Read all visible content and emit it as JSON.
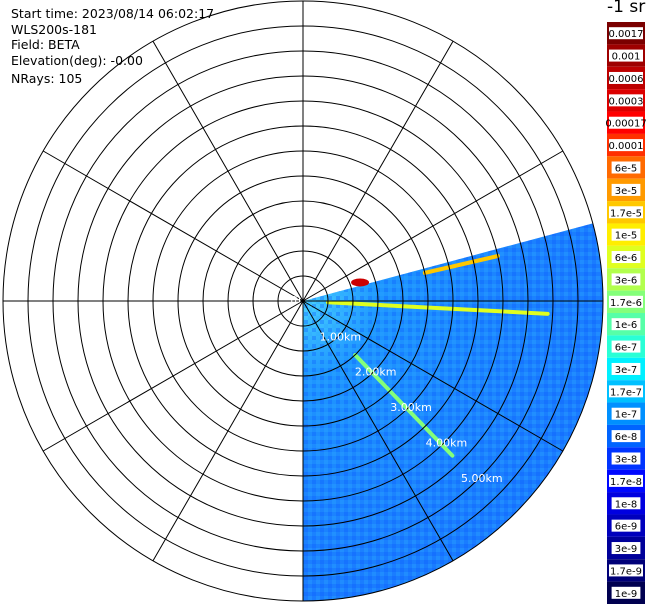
{
  "info": {
    "start_time": "Start time: 2023/08/14 06:02:17",
    "instrument": "WLS200s-181",
    "field": "Field: BETA",
    "elevation": "Elevation(deg): -0.00",
    "nrays": "NRays: 105"
  },
  "colorbar": {
    "title": "-1 sr",
    "labels": [
      "0.0017",
      "0.001",
      "0.0006",
      "0.0003",
      "0.00017",
      "0.0001",
      "6e-5",
      "3e-5",
      "1.7e-5",
      "1e-5",
      "6e-6",
      "3e-6",
      "1.7e-6",
      "1e-6",
      "6e-7",
      "3e-7",
      "1.7e-7",
      "1e-7",
      "6e-8",
      "3e-8",
      "1.7e-8",
      "1e-8",
      "6e-9",
      "3e-9",
      "1.7e-9",
      "1e-9"
    ],
    "colors": [
      "#7a0000",
      "#9e0000",
      "#bd0000",
      "#dc0000",
      "#ff0000",
      "#ff3000",
      "#ff6a00",
      "#ff9a00",
      "#ffc800",
      "#ffee00",
      "#dfff20",
      "#b2ff4d",
      "#84ff7a",
      "#56ffa8",
      "#29ffd6",
      "#00f0ff",
      "#00c0ff",
      "#0090ff",
      "#0064ff",
      "#0034ff",
      "#0008ff",
      "#0000e0",
      "#0000bd",
      "#00009a",
      "#000078",
      "#000050"
    ]
  },
  "chart_data": {
    "type": "ppi",
    "range_rings_km": [
      0.5,
      1.0,
      1.5,
      2.0,
      2.5,
      3.0,
      3.5,
      4.0,
      4.5,
      5.0,
      5.5,
      6.0
    ],
    "ring_labels": [
      "1.00km",
      "2.00km",
      "3.00km",
      "4.00km",
      "5.00km"
    ],
    "ring_label_partial": "m",
    "radial_spokes_deg": [
      0,
      30,
      60,
      90,
      120,
      150,
      180,
      210,
      240,
      270,
      300,
      330
    ],
    "scan_sector_deg": {
      "from": 75,
      "to": 180
    },
    "max_range_km": 6.0,
    "azimuth_convention": "clockwise from north",
    "features": [
      {
        "name": "near-field hotspot",
        "az_deg": 72,
        "range_km": 1.2,
        "level": "high",
        "color": "#cc0000"
      },
      {
        "name": "upper streak",
        "az_deg": 77,
        "range_km": [
          2.5,
          4.0
        ],
        "level": "mid",
        "color": "#ffc800"
      },
      {
        "name": "horizontal streak",
        "az_deg": 93,
        "range_km": [
          0.5,
          4.9
        ],
        "level": "mid",
        "color": "#dfff20"
      },
      {
        "name": "diagonal streak",
        "az_deg": 136,
        "range_km": [
          1.5,
          4.3
        ],
        "level": "mid",
        "color": "#84ff7a"
      }
    ]
  }
}
